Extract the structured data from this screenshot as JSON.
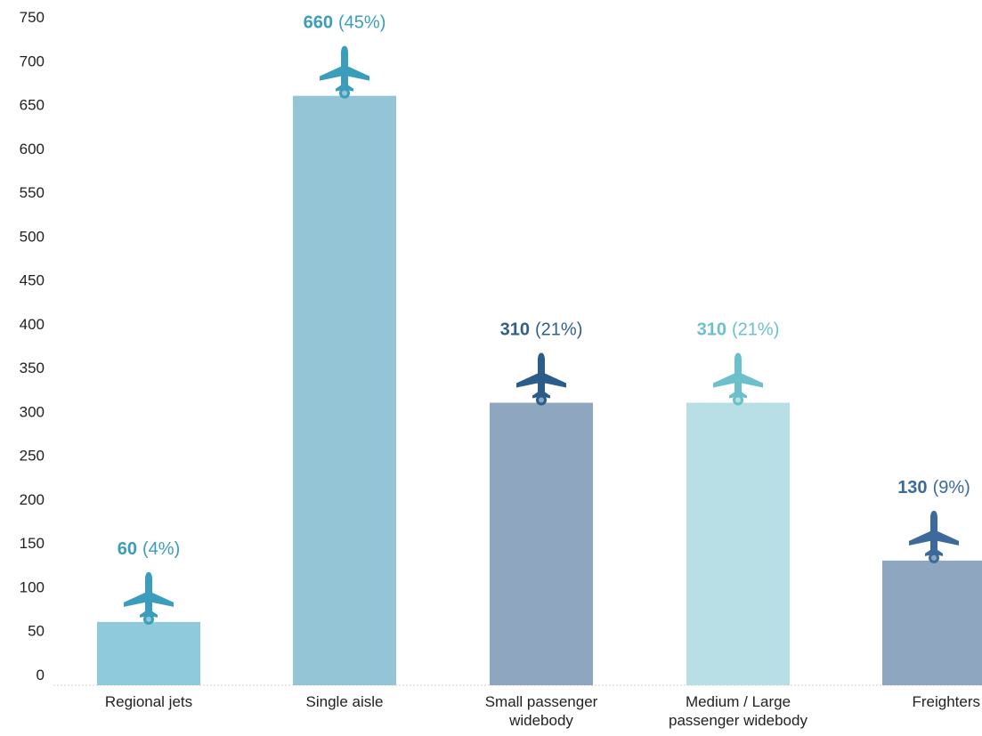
{
  "chart_data": {
    "type": "bar",
    "title": "",
    "xlabel": "",
    "ylabel": "",
    "ylim": [
      0,
      750
    ],
    "yticks": [
      0,
      50,
      100,
      150,
      200,
      250,
      300,
      350,
      400,
      450,
      500,
      550,
      600,
      650,
      700,
      750
    ],
    "grid": false,
    "categories": [
      [
        "Regional jets"
      ],
      [
        "Single aisle"
      ],
      [
        "Small passenger",
        "widebody"
      ],
      [
        "Medium / Large",
        "passenger widebody"
      ],
      [
        "Freighters"
      ]
    ],
    "values": [
      60,
      660,
      310,
      310,
      130
    ],
    "value_labels": [
      "60",
      "660",
      "310",
      "310",
      "130"
    ],
    "percent_labels": [
      "(4%)",
      "(45%)",
      "(21%)",
      "(21%)",
      "(9%)"
    ],
    "bar_colors": [
      "#8ecadb",
      "#93c5d6",
      "#8ea6c0",
      "#b9dfe6",
      "#8ea6c0"
    ],
    "label_colors": [
      "#3a9dbb",
      "#3a9dbb",
      "#2f5f8a",
      "#6cc0cc",
      "#3c6a9c"
    ],
    "icon_colors": [
      "#3a9dbb",
      "#3a9dbb",
      "#2b5c8a",
      "#6cc0cc",
      "#3c6a9c"
    ],
    "icon": "airplane-icon"
  }
}
